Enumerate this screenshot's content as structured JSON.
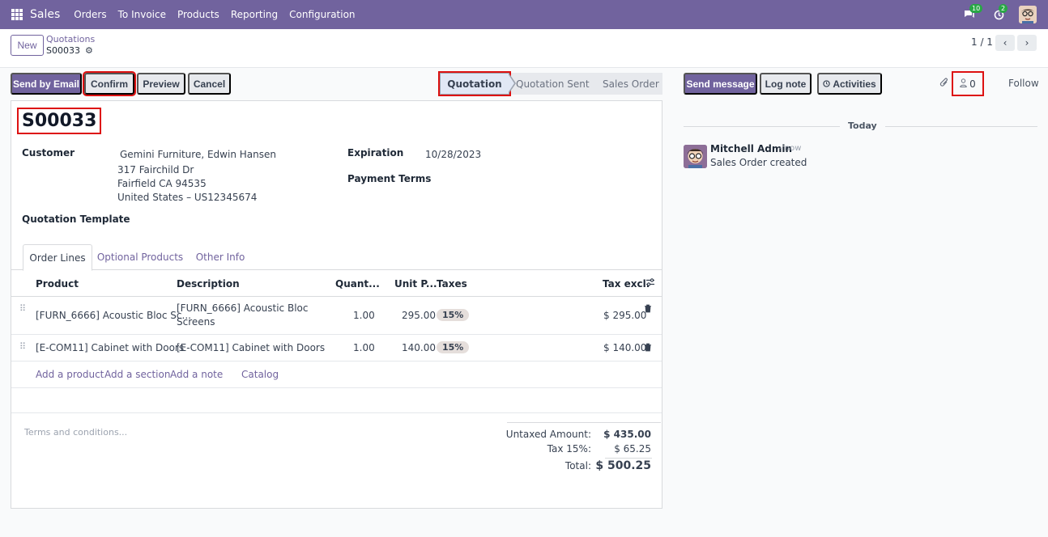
{
  "navbar": {
    "brand": "Sales",
    "menu": [
      "Orders",
      "To Invoice",
      "Products",
      "Reporting",
      "Configuration"
    ],
    "messages_badge": "10",
    "activities_badge": "2"
  },
  "control": {
    "new_label": "New",
    "breadcrumb_parent": "Quotations",
    "breadcrumb_current": "S00033",
    "pager": "1 / 1"
  },
  "actions": {
    "send_by_email": "Send by Email",
    "confirm": "Confirm",
    "preview": "Preview",
    "cancel": "Cancel"
  },
  "stages": [
    "Quotation",
    "Quotation Sent",
    "Sales Order"
  ],
  "form": {
    "name": "S00033",
    "customer_label": "Customer",
    "customer_name": "Gemini Furniture, Edwin Hansen",
    "address1": "317 Fairchild Dr",
    "address2": "Fairfield CA 94535",
    "address3": "United States – US12345674",
    "expiration_label": "Expiration",
    "expiration_value": "10/28/2023",
    "payment_terms_label": "Payment Terms",
    "quotation_template_label": "Quotation Template"
  },
  "tabs": [
    "Order Lines",
    "Optional Products",
    "Other Info"
  ],
  "columns": [
    "Product",
    "Description",
    "Quant...",
    "Unit P...",
    "Taxes",
    "Tax excl."
  ],
  "lines": [
    {
      "product": "[FURN_6666] Acoustic Bloc Sc...",
      "description1": "[FURN_6666] Acoustic Bloc",
      "description2": "Screens",
      "qty": "1.00",
      "price": "295.00",
      "tax": "15%",
      "subtotal": "$ 295.00"
    },
    {
      "product": "[E-COM11] Cabinet with Doors",
      "description1": "[E-COM11] Cabinet with Doors",
      "description2": "",
      "qty": "1.00",
      "price": "140.00",
      "tax": "15%",
      "subtotal": "$ 140.00"
    }
  ],
  "add_links": [
    "Add a product",
    "Add a section",
    "Add a note",
    "Catalog"
  ],
  "terms_placeholder": "Terms and conditions...",
  "totals": {
    "untaxed_label": "Untaxed Amount:",
    "untaxed_value": "$ 435.00",
    "tax_label": "Tax 15%:",
    "tax_value": "$ 65.25",
    "total_label": "Total:",
    "total_value": "$ 500.25"
  },
  "chatter": {
    "send_message": "Send message",
    "log_note": "Log note",
    "activities": "Activities",
    "followers_count": "0",
    "follow": "Follow",
    "date_separator": "Today",
    "author": "Mitchell Admin",
    "time": "- now",
    "message": "Sales Order created"
  }
}
